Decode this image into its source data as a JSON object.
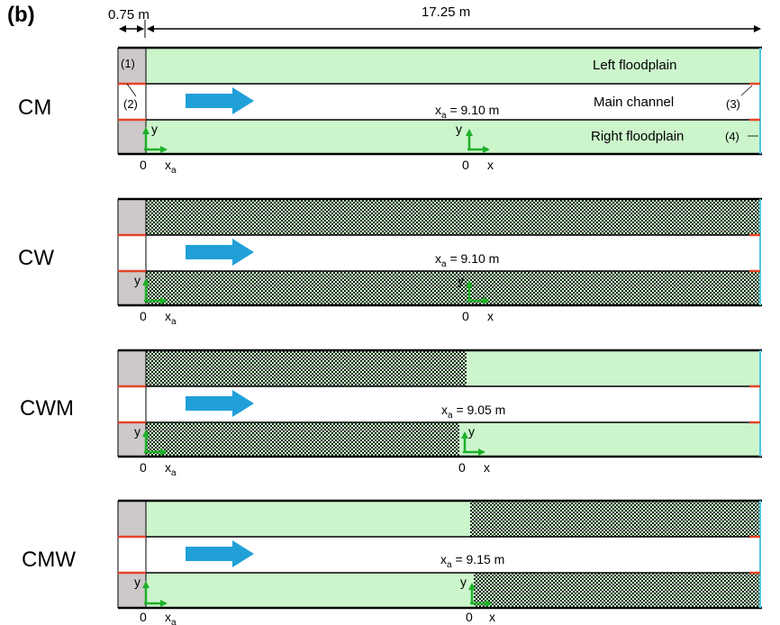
{
  "figure_label": "(b)",
  "dimensions": {
    "inlet_length": "0.75 m",
    "channel_length": "17.25 m"
  },
  "colors": {
    "floodplain": "#ccf5cc",
    "inlet": "#cdc9c9",
    "frame": "#000000",
    "flow_arrow": "#21a0d8",
    "axes": "#1fb02a",
    "boundary_marker": "#e5442a",
    "outlet": "#4fc3e6",
    "vegetation_dark": "#0b2b0b"
  },
  "panels": [
    {
      "label": "CM",
      "xa_text": "x",
      "xa_sub": "a",
      "xa_value": " = 9.10 m",
      "annotations": {
        "left_floodplain": "Left floodplain",
        "main_channel": "Main channel",
        "right_floodplain": "Right floodplain",
        "marker_1": "(1)",
        "marker_2": "(2)",
        "marker_3": "(3)",
        "marker_4": "(4)"
      },
      "axes": {
        "origin_a": "0",
        "x_a": "x",
        "x_a_sub": "a",
        "y_a": "y",
        "origin": "0",
        "x": "x",
        "y": "y"
      }
    },
    {
      "label": "CW",
      "xa_text": "x",
      "xa_sub": "a",
      "xa_value": " = 9.10 m",
      "axes": {
        "origin_a": "0",
        "x_a": "x",
        "x_a_sub": "a",
        "y_a": "y",
        "origin": "0",
        "x": "x",
        "y": "y"
      }
    },
    {
      "label": "CWM",
      "xa_text": "x",
      "xa_sub": "a",
      "xa_value": " = 9.05 m",
      "axes": {
        "origin_a": "0",
        "x_a": "x",
        "x_a_sub": "a",
        "y_a": "y",
        "origin": "0",
        "x": "x",
        "y": "y"
      }
    },
    {
      "label": "CMW",
      "xa_text": "x",
      "xa_sub": "a",
      "xa_value": " = 9.15 m",
      "axes": {
        "origin_a": "0",
        "x_a": "x",
        "x_a_sub": "a",
        "y_a": "y",
        "origin": "0",
        "x": "x",
        "y": "y"
      }
    }
  ]
}
